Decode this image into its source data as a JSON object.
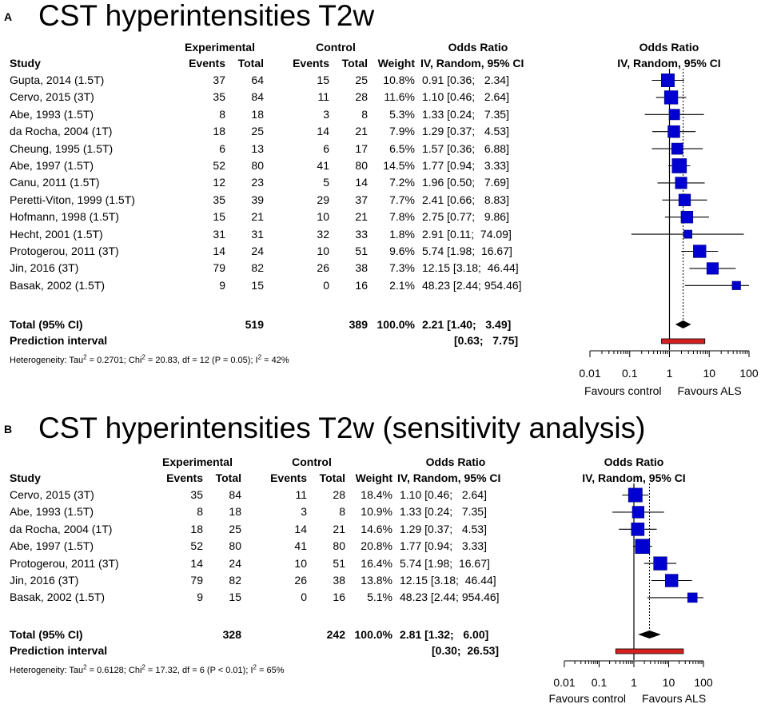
{
  "chart_data": [
    {
      "type": "forest",
      "panel_label": "A",
      "title": "CST hyperintensities T2w",
      "header": {
        "experimental": "Experimental",
        "control": "Control",
        "odds_ratio": "Odds Ratio",
        "study": "Study",
        "events": "Events",
        "total": "Total",
        "weight": "Weight",
        "method": "IV, Random, 95% CI"
      },
      "studies": [
        {
          "name": "Gupta, 2014 (1.5T)",
          "exp_events": "37",
          "exp_total": "64",
          "ctl_events": "15",
          "ctl_total": "25",
          "weight": "10.8%",
          "ci_text": "0.91 [0.36;   2.34]",
          "or": 0.91,
          "lo": 0.36,
          "hi": 2.34,
          "w": 10.8
        },
        {
          "name": "Cervo, 2015 (3T)",
          "exp_events": "35",
          "exp_total": "84",
          "ctl_events": "11",
          "ctl_total": "28",
          "weight": "11.6%",
          "ci_text": "1.10 [0.46;   2.64]",
          "or": 1.1,
          "lo": 0.46,
          "hi": 2.64,
          "w": 11.6
        },
        {
          "name": "Abe, 1993 (1.5T)",
          "exp_events": "8",
          "exp_total": "18",
          "ctl_events": "3",
          "ctl_total": "8",
          "weight": "5.3%",
          "ci_text": "1.33 [0.24;   7.35]",
          "or": 1.33,
          "lo": 0.24,
          "hi": 7.35,
          "w": 5.3
        },
        {
          "name": "da Rocha, 2004 (1T)",
          "exp_events": "18",
          "exp_total": "25",
          "ctl_events": "14",
          "ctl_total": "21",
          "weight": "7.9%",
          "ci_text": "1.29 [0.37;   4.53]",
          "or": 1.29,
          "lo": 0.37,
          "hi": 4.53,
          "w": 7.9
        },
        {
          "name": "Cheung, 1995 (1.5T)",
          "exp_events": "6",
          "exp_total": "13",
          "ctl_events": "6",
          "ctl_total": "17",
          "weight": "6.5%",
          "ci_text": "1.57 [0.36;   6.88]",
          "or": 1.57,
          "lo": 0.36,
          "hi": 6.88,
          "w": 6.5
        },
        {
          "name": "Abe, 1997 (1.5T)",
          "exp_events": "52",
          "exp_total": "80",
          "ctl_events": "41",
          "ctl_total": "80",
          "weight": "14.5%",
          "ci_text": "1.77 [0.94;   3.33]",
          "or": 1.77,
          "lo": 0.94,
          "hi": 3.33,
          "w": 14.5
        },
        {
          "name": "Canu, 2011 (1.5T)",
          "exp_events": "12",
          "exp_total": "23",
          "ctl_events": "5",
          "ctl_total": "14",
          "weight": "7.2%",
          "ci_text": "1.96 [0.50;   7.69]",
          "or": 1.96,
          "lo": 0.5,
          "hi": 7.69,
          "w": 7.2
        },
        {
          "name": "Peretti-Viton, 1999 (1.5T)",
          "exp_events": "35",
          "exp_total": "39",
          "ctl_events": "29",
          "ctl_total": "37",
          "weight": "7.7%",
          "ci_text": "2.41 [0.66;   8.83]",
          "or": 2.41,
          "lo": 0.66,
          "hi": 8.83,
          "w": 7.7
        },
        {
          "name": "Hofmann, 1998 (1.5T)",
          "exp_events": "15",
          "exp_total": "21",
          "ctl_events": "10",
          "ctl_total": "21",
          "weight": "7.8%",
          "ci_text": "2.75 [0.77;   9.86]",
          "or": 2.75,
          "lo": 0.77,
          "hi": 9.86,
          "w": 7.8
        },
        {
          "name": "Hecht, 2001 (1.5T)",
          "exp_events": "31",
          "exp_total": "31",
          "ctl_events": "32",
          "ctl_total": "33",
          "weight": "1.8%",
          "ci_text": "2.91 [0.11;  74.09]",
          "or": 2.91,
          "lo": 0.11,
          "hi": 74.09,
          "w": 1.8
        },
        {
          "name": "Protogerou, 2011 (3T)",
          "exp_events": "14",
          "exp_total": "24",
          "ctl_events": "10",
          "ctl_total": "51",
          "weight": "9.6%",
          "ci_text": "5.74 [1.98;  16.67]",
          "or": 5.74,
          "lo": 1.98,
          "hi": 16.67,
          "w": 9.6
        },
        {
          "name": "Jin, 2016 (3T)",
          "exp_events": "79",
          "exp_total": "82",
          "ctl_events": "26",
          "ctl_total": "38",
          "weight": "7.3%",
          "ci_text": "12.15 [3.18;  46.44]",
          "or": 12.15,
          "lo": 3.18,
          "hi": 46.44,
          "w": 7.3
        },
        {
          "name": "Basak, 2002 (1.5T)",
          "exp_events": "9",
          "exp_total": "15",
          "ctl_events": "0",
          "ctl_total": "16",
          "weight": "2.1%",
          "ci_text": "48.23 [2.44; 954.46]",
          "or": 48.23,
          "lo": 2.44,
          "hi": 954.46,
          "w": 2.1
        }
      ],
      "total": {
        "label": "Total (95% CI)",
        "exp_total": "519",
        "ctl_total": "389",
        "weight": "100.0%",
        "ci_text": "2.21 [1.40;   3.49]",
        "or": 2.21,
        "lo": 1.4,
        "hi": 3.49
      },
      "prediction": {
        "label": "Prediction interval",
        "ci_text": "[0.63;   7.75]",
        "lo": 0.63,
        "hi": 7.75
      },
      "heterogeneity": {
        "prefix": "Heterogeneity: Tau",
        "tau2": " = 0.2701; Chi",
        "chi2": " = 20.83, df = 12 (P = 0.05); I",
        "i2": " = 42%",
        "sup": "2"
      },
      "axis": {
        "ticks": [
          0.01,
          0.1,
          1,
          10,
          100
        ],
        "tick_labels": [
          "0.01",
          "0.1",
          "1",
          "10",
          "100"
        ],
        "xlim": [
          0.01,
          100
        ],
        "left_label": "Favours control",
        "right_label": "Favours ALS",
        "scale": "log"
      }
    },
    {
      "type": "forest",
      "panel_label": "B",
      "title": "CST hyperintensities T2w (sensitivity analysis)",
      "header": {
        "experimental": "Experimental",
        "control": "Control",
        "odds_ratio": "Odds Ratio",
        "study": "Study",
        "events": "Events",
        "total": "Total",
        "weight": "Weight",
        "method": "IV, Random, 95% CI"
      },
      "studies": [
        {
          "name": "Cervo, 2015 (3T)",
          "exp_events": "35",
          "exp_total": "84",
          "ctl_events": "11",
          "ctl_total": "28",
          "weight": "18.4%",
          "ci_text": "1.10 [0.46;   2.64]",
          "or": 1.1,
          "lo": 0.46,
          "hi": 2.64,
          "w": 18.4
        },
        {
          "name": "Abe, 1993 (1.5T)",
          "exp_events": "8",
          "exp_total": "18",
          "ctl_events": "3",
          "ctl_total": "8",
          "weight": "10.9%",
          "ci_text": "1.33 [0.24;   7.35]",
          "or": 1.33,
          "lo": 0.24,
          "hi": 7.35,
          "w": 10.9
        },
        {
          "name": "da Rocha, 2004 (1T)",
          "exp_events": "18",
          "exp_total": "25",
          "ctl_events": "14",
          "ctl_total": "21",
          "weight": "14.6%",
          "ci_text": "1.29 [0.37;   4.53]",
          "or": 1.29,
          "lo": 0.37,
          "hi": 4.53,
          "w": 14.6
        },
        {
          "name": "Abe, 1997 (1.5T)",
          "exp_events": "52",
          "exp_total": "80",
          "ctl_events": "41",
          "ctl_total": "80",
          "weight": "20.8%",
          "ci_text": "1.77 [0.94;   3.33]",
          "or": 1.77,
          "lo": 0.94,
          "hi": 3.33,
          "w": 20.8
        },
        {
          "name": "Protogerou, 2011 (3T)",
          "exp_events": "14",
          "exp_total": "24",
          "ctl_events": "10",
          "ctl_total": "51",
          "weight": "16.4%",
          "ci_text": "5.74 [1.98;  16.67]",
          "or": 5.74,
          "lo": 1.98,
          "hi": 16.67,
          "w": 16.4
        },
        {
          "name": "Jin, 2016 (3T)",
          "exp_events": "79",
          "exp_total": "82",
          "ctl_events": "26",
          "ctl_total": "38",
          "weight": "13.8%",
          "ci_text": "12.15 [3.18;  46.44]",
          "or": 12.15,
          "lo": 3.18,
          "hi": 46.44,
          "w": 13.8
        },
        {
          "name": "Basak, 2002 (1.5T)",
          "exp_events": "9",
          "exp_total": "15",
          "ctl_events": "0",
          "ctl_total": "16",
          "weight": "5.1%",
          "ci_text": "48.23 [2.44; 954.46]",
          "or": 48.23,
          "lo": 2.44,
          "hi": 954.46,
          "w": 5.1
        }
      ],
      "total": {
        "label": "Total (95% CI)",
        "exp_total": "328",
        "ctl_total": "242",
        "weight": "100.0%",
        "ci_text": "2.81 [1.32;   6.00]",
        "or": 2.81,
        "lo": 1.32,
        "hi": 6.0
      },
      "prediction": {
        "label": "Prediction interval",
        "ci_text": "[0.30;  26.53]",
        "lo": 0.3,
        "hi": 26.53
      },
      "heterogeneity": {
        "prefix": "Heterogeneity: Tau",
        "tau2": " = 0.6128; Chi",
        "chi2": " = 17.32, df = 6 (P < 0.01); I",
        "i2": " = 65%",
        "sup": "2"
      },
      "axis": {
        "ticks": [
          0.01,
          0.1,
          1,
          10,
          100
        ],
        "tick_labels": [
          "0.01",
          "0.1",
          "1",
          "10",
          "100"
        ],
        "xlim": [
          0.01,
          100
        ],
        "left_label": "Favours control",
        "right_label": "Favours ALS",
        "scale": "log"
      }
    }
  ],
  "colors": {
    "box": "#0000d0",
    "box_border": "#00007a",
    "prediction": "#d62020",
    "diamond": "#000000"
  }
}
